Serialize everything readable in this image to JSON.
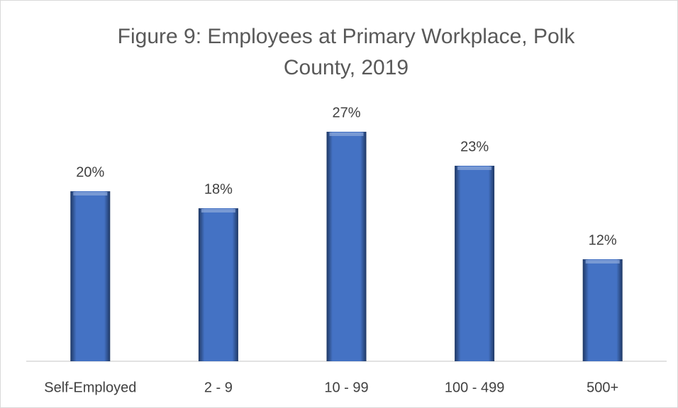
{
  "chart_data": {
    "type": "bar",
    "title": "Figure 9:  Employees at Primary Workplace, Polk County, 2019",
    "categories": [
      "Self-Employed",
      "2 - 9",
      "10 - 99",
      "100 - 499",
      "500+"
    ],
    "values": [
      20,
      18,
      27,
      23,
      12
    ],
    "value_labels": [
      "20%",
      "18%",
      "27%",
      "23%",
      "12%"
    ],
    "color": "#4472c4"
  }
}
